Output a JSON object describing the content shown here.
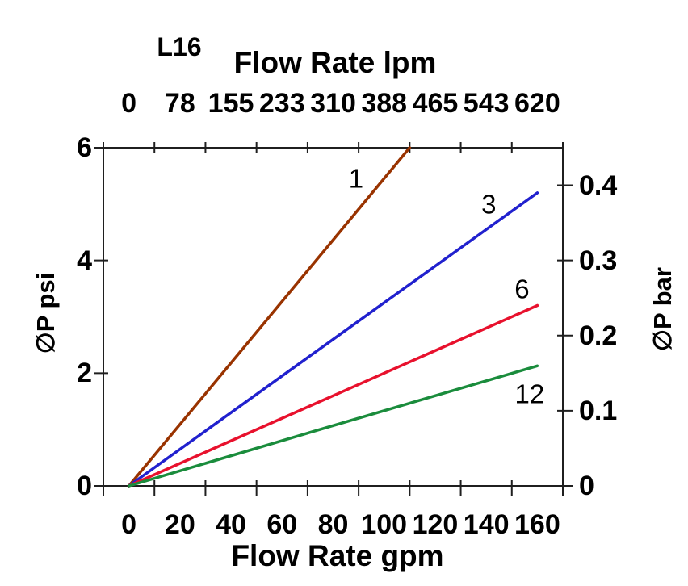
{
  "chart_data": {
    "type": "line",
    "model_label": "L16",
    "top_axis": {
      "title": "Flow Rate lpm",
      "tick_labels": [
        "0",
        "78",
        "155",
        "233",
        "310",
        "388",
        "465",
        "543",
        "620"
      ]
    },
    "bottom_axis": {
      "title": "Flow Rate gpm",
      "tick_labels": [
        "0",
        "20",
        "40",
        "60",
        "80",
        "100",
        "120",
        "140",
        "160"
      ],
      "min": 0,
      "max": 160
    },
    "left_axis": {
      "title": "∅P psi",
      "tick_labels": [
        "6",
        "4",
        "2",
        "0"
      ],
      "tick_values": [
        6,
        4,
        2,
        0
      ],
      "min": 0,
      "max": 6
    },
    "right_axis": {
      "title": "∅P bar",
      "tick_labels": [
        "0.4",
        "0.3",
        "0.2",
        "0.1",
        "0"
      ],
      "tick_values": [
        0.4,
        0.3,
        0.2,
        0.1,
        0
      ],
      "min": 0,
      "max": 0.45
    },
    "axis_color": "#1f1f1f",
    "grid": "off",
    "legend": "inline-labels",
    "series": [
      {
        "name": "1",
        "color": "#993300",
        "points_gpm_psi": [
          [
            0,
            0
          ],
          [
            55,
            3.0
          ],
          [
            110,
            6.0
          ]
        ],
        "label_at_gpm_psi": [
          89,
          5.45
        ]
      },
      {
        "name": "3",
        "color": "#2121CE",
        "points_gpm_psi": [
          [
            0,
            0
          ],
          [
            80,
            2.6
          ],
          [
            160,
            5.2
          ]
        ],
        "label_at_gpm_psi": [
          141,
          5.0
        ]
      },
      {
        "name": "6",
        "color": "#E8112D",
        "points_gpm_psi": [
          [
            0,
            0
          ],
          [
            80,
            1.6
          ],
          [
            160,
            3.2
          ]
        ],
        "label_at_gpm_psi": [
          154,
          3.5
        ]
      },
      {
        "name": "12",
        "color": "#1A8C3C",
        "points_gpm_psi": [
          [
            0,
            0
          ],
          [
            80,
            1.07
          ],
          [
            160,
            2.13
          ]
        ],
        "label_at_gpm_psi": [
          157,
          1.63
        ]
      }
    ]
  }
}
